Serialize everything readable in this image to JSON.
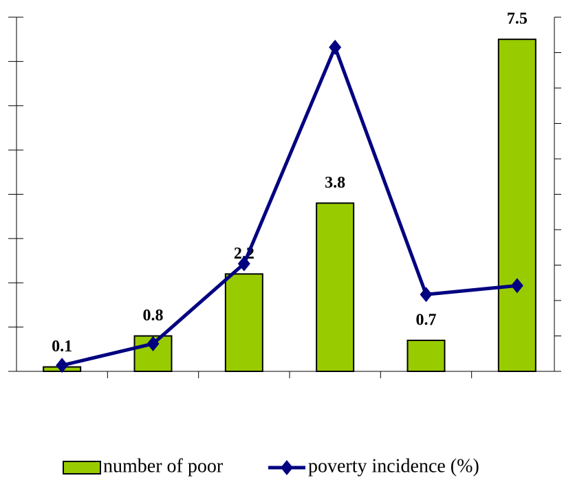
{
  "chart_data": {
    "type": "bar_line",
    "categories": [
      null,
      null,
      null,
      null,
      null,
      null
    ],
    "series": [
      {
        "name": "number of poor",
        "type": "bar",
        "color": "#99cc00",
        "values": [
          0.1,
          0.8,
          2.2,
          3.8,
          0.7,
          7.5
        ]
      },
      {
        "name": "poverty incidence (%)",
        "type": "line",
        "color": "#000080",
        "axis": "y2",
        "values": [
          0.17,
          0.78,
          3.04,
          9.15,
          2.17,
          2.42
        ]
      }
    ],
    "ylim": [
      0,
      8
    ],
    "yticks": [
      0,
      1,
      2,
      3,
      4,
      5,
      6,
      7,
      8
    ],
    "y2lim": [
      0,
      10
    ],
    "y2ticks": [
      0,
      1,
      2,
      3,
      4,
      5,
      6,
      7,
      8,
      9,
      10
    ],
    "legend": "bottom"
  }
}
